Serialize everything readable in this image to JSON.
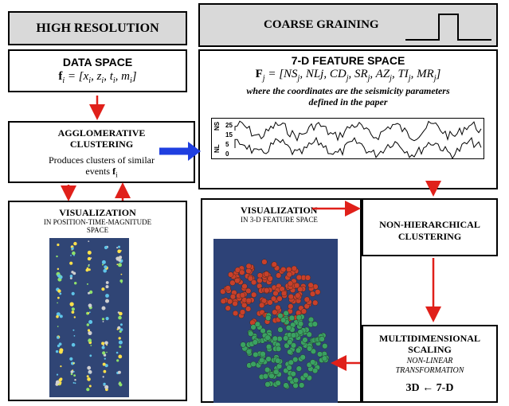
{
  "left": {
    "header": "HIGH RESOLUTION",
    "data_space": {
      "title": "DATA SPACE",
      "formula_f": "f",
      "formula_sub": "i",
      "formula_rest": " = [x",
      "formula_text": "f_i = [x_i, z_i, t_i, m_i]"
    },
    "clustering": {
      "title_line1": "AGGLOMERATIVE",
      "title_line2": "CLUSTERING",
      "desc_line1": "Produces clusters of similar",
      "desc_line2": "events",
      "desc_f": "f",
      "desc_sub": "i"
    },
    "visualization": {
      "title": "VISUALIZATION",
      "sub_line1": "IN POSITION-TIME-MAGNITUDE",
      "sub_line2": "SPACE"
    }
  },
  "right": {
    "header": "COARSE GRAINING",
    "feature_space": {
      "title": "7-D FEATURE SPACE",
      "formula_text": "F_j = [NS_j, NLj, CD_j, SR_j, AZ_j, TI_j, MR_j]",
      "note_line1": "where the coordinates are the seismicity parameters",
      "note_line2": "defined in the paper",
      "plot": {
        "label_top": "NS",
        "label_bottom": "NL",
        "ticks": [
          "25",
          "15",
          "5",
          "0"
        ]
      }
    },
    "visualization": {
      "title": "VISUALIZATION",
      "sub": "IN 3-D FEATURE SPACE",
      "image_label": "3-D plot"
    },
    "non_hier": {
      "line1": "NON-HIERARCHICAL",
      "line2": "CLUSTERING"
    },
    "mds": {
      "line1": "MULTIDIMENSIONAL",
      "line2": "SCALING",
      "italic1": "NON-LINEAR",
      "italic2": "TRANSFORMATION",
      "dims": "3D ← 7-D"
    }
  },
  "colors": {
    "header_bg": "#d9d9d9",
    "arrow_red": "#e0201a",
    "arrow_blue": "#1f3fe0",
    "cluster_red": "#c8402a",
    "cluster_green": "#3aa262",
    "viz_bg": "#2b3a7a"
  }
}
